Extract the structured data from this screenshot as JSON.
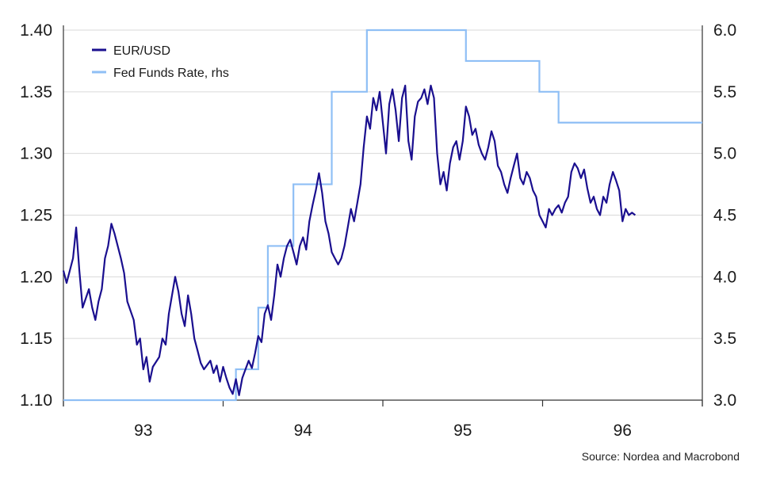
{
  "source": "Source: Nordea and Macrobond",
  "colors": {
    "eurusd": "#1a0f8f",
    "fed": "#8fbff5",
    "grid": "#d9d9d9",
    "axis": "#333333"
  },
  "chart_data": {
    "type": "line",
    "legend_position": "top-left",
    "grid": true,
    "x_range": [
      2022.5,
      2024.5
    ],
    "x_ticks": [
      {
        "label": "93",
        "x": 2022.75
      },
      {
        "label": "94",
        "x": 2023.25
      },
      {
        "label": "95",
        "x": 2023.75
      },
      {
        "label": "96",
        "x": 2024.25
      }
    ],
    "x_boundaries": [
      2022.5,
      2023.0,
      2023.5,
      2024.0,
      2024.5
    ],
    "y_left": {
      "range": [
        1.1,
        1.4
      ],
      "ticks": [
        "1.10",
        "1.15",
        "1.20",
        "1.25",
        "1.30",
        "1.35",
        "1.40"
      ]
    },
    "y_right": {
      "range": [
        3.0,
        6.0
      ],
      "ticks": [
        "3.0",
        "3.5",
        "4.0",
        "4.5",
        "5.0",
        "5.5",
        "6.0"
      ]
    },
    "series": [
      {
        "name": "EUR/USD",
        "axis": "left",
        "points": [
          [
            2022.5,
            1.205
          ],
          [
            2022.51,
            1.195
          ],
          [
            2022.53,
            1.215
          ],
          [
            2022.54,
            1.24
          ],
          [
            2022.55,
            1.205
          ],
          [
            2022.56,
            1.175
          ],
          [
            2022.58,
            1.19
          ],
          [
            2022.59,
            1.175
          ],
          [
            2022.6,
            1.165
          ],
          [
            2022.61,
            1.18
          ],
          [
            2022.62,
            1.19
          ],
          [
            2022.63,
            1.215
          ],
          [
            2022.64,
            1.225
          ],
          [
            2022.65,
            1.243
          ],
          [
            2022.66,
            1.235
          ],
          [
            2022.68,
            1.215
          ],
          [
            2022.69,
            1.203
          ],
          [
            2022.7,
            1.18
          ],
          [
            2022.72,
            1.165
          ],
          [
            2022.73,
            1.145
          ],
          [
            2022.74,
            1.15
          ],
          [
            2022.75,
            1.125
          ],
          [
            2022.76,
            1.135
          ],
          [
            2022.77,
            1.115
          ],
          [
            2022.78,
            1.127
          ],
          [
            2022.8,
            1.135
          ],
          [
            2022.81,
            1.15
          ],
          [
            2022.82,
            1.145
          ],
          [
            2022.83,
            1.17
          ],
          [
            2022.84,
            1.185
          ],
          [
            2022.85,
            1.2
          ],
          [
            2022.86,
            1.188
          ],
          [
            2022.87,
            1.17
          ],
          [
            2022.88,
            1.16
          ],
          [
            2022.89,
            1.185
          ],
          [
            2022.9,
            1.17
          ],
          [
            2022.91,
            1.15
          ],
          [
            2022.92,
            1.14
          ],
          [
            2022.93,
            1.13
          ],
          [
            2022.94,
            1.125
          ],
          [
            2022.96,
            1.132
          ],
          [
            2022.97,
            1.122
          ],
          [
            2022.98,
            1.128
          ],
          [
            2022.99,
            1.115
          ],
          [
            2023.0,
            1.127
          ],
          [
            2023.01,
            1.118
          ],
          [
            2023.02,
            1.11
          ],
          [
            2023.03,
            1.105
          ],
          [
            2023.04,
            1.117
          ],
          [
            2023.05,
            1.104
          ],
          [
            2023.06,
            1.118
          ],
          [
            2023.07,
            1.125
          ],
          [
            2023.08,
            1.132
          ],
          [
            2023.09,
            1.126
          ],
          [
            2023.1,
            1.138
          ],
          [
            2023.11,
            1.152
          ],
          [
            2023.12,
            1.147
          ],
          [
            2023.13,
            1.17
          ],
          [
            2023.14,
            1.177
          ],
          [
            2023.15,
            1.165
          ],
          [
            2023.16,
            1.185
          ],
          [
            2023.17,
            1.21
          ],
          [
            2023.18,
            1.2
          ],
          [
            2023.19,
            1.215
          ],
          [
            2023.2,
            1.225
          ],
          [
            2023.21,
            1.23
          ],
          [
            2023.22,
            1.22
          ],
          [
            2023.23,
            1.21
          ],
          [
            2023.24,
            1.225
          ],
          [
            2023.25,
            1.232
          ],
          [
            2023.26,
            1.222
          ],
          [
            2023.27,
            1.245
          ],
          [
            2023.28,
            1.258
          ],
          [
            2023.29,
            1.27
          ],
          [
            2023.3,
            1.284
          ],
          [
            2023.31,
            1.268
          ],
          [
            2023.32,
            1.245
          ],
          [
            2023.33,
            1.235
          ],
          [
            2023.34,
            1.22
          ],
          [
            2023.35,
            1.215
          ],
          [
            2023.36,
            1.21
          ],
          [
            2023.37,
            1.215
          ],
          [
            2023.38,
            1.225
          ],
          [
            2023.39,
            1.24
          ],
          [
            2023.4,
            1.255
          ],
          [
            2023.41,
            1.245
          ],
          [
            2023.42,
            1.26
          ],
          [
            2023.43,
            1.275
          ],
          [
            2023.44,
            1.305
          ],
          [
            2023.45,
            1.33
          ],
          [
            2023.46,
            1.32
          ],
          [
            2023.47,
            1.345
          ],
          [
            2023.48,
            1.335
          ],
          [
            2023.49,
            1.35
          ],
          [
            2023.5,
            1.325
          ],
          [
            2023.51,
            1.3
          ],
          [
            2023.52,
            1.34
          ],
          [
            2023.53,
            1.352
          ],
          [
            2023.54,
            1.335
          ],
          [
            2023.55,
            1.31
          ],
          [
            2023.56,
            1.345
          ],
          [
            2023.57,
            1.355
          ],
          [
            2023.58,
            1.31
          ],
          [
            2023.59,
            1.295
          ],
          [
            2023.6,
            1.33
          ],
          [
            2023.61,
            1.342
          ],
          [
            2023.62,
            1.345
          ],
          [
            2023.63,
            1.352
          ],
          [
            2023.64,
            1.34
          ],
          [
            2023.65,
            1.355
          ],
          [
            2023.66,
            1.345
          ],
          [
            2023.67,
            1.3
          ],
          [
            2023.68,
            1.275
          ],
          [
            2023.69,
            1.285
          ],
          [
            2023.7,
            1.27
          ],
          [
            2023.71,
            1.292
          ],
          [
            2023.72,
            1.305
          ],
          [
            2023.73,
            1.31
          ],
          [
            2023.74,
            1.295
          ],
          [
            2023.75,
            1.31
          ],
          [
            2023.76,
            1.338
          ],
          [
            2023.77,
            1.33
          ],
          [
            2023.78,
            1.315
          ],
          [
            2023.79,
            1.32
          ],
          [
            2023.8,
            1.307
          ],
          [
            2023.81,
            1.3
          ],
          [
            2023.82,
            1.295
          ],
          [
            2023.83,
            1.305
          ],
          [
            2023.84,
            1.318
          ],
          [
            2023.85,
            1.31
          ],
          [
            2023.86,
            1.29
          ],
          [
            2023.87,
            1.285
          ],
          [
            2023.88,
            1.275
          ],
          [
            2023.89,
            1.268
          ],
          [
            2023.9,
            1.28
          ],
          [
            2023.91,
            1.29
          ],
          [
            2023.92,
            1.3
          ],
          [
            2023.93,
            1.28
          ],
          [
            2023.94,
            1.275
          ],
          [
            2023.95,
            1.285
          ],
          [
            2023.96,
            1.28
          ],
          [
            2023.97,
            1.27
          ],
          [
            2023.98,
            1.265
          ],
          [
            2023.99,
            1.25
          ],
          [
            2024.0,
            1.245
          ],
          [
            2024.01,
            1.24
          ],
          [
            2024.02,
            1.255
          ],
          [
            2024.03,
            1.25
          ],
          [
            2024.04,
            1.255
          ],
          [
            2024.05,
            1.258
          ],
          [
            2024.06,
            1.252
          ],
          [
            2024.07,
            1.26
          ],
          [
            2024.08,
            1.265
          ],
          [
            2024.09,
            1.285
          ],
          [
            2024.1,
            1.292
          ],
          [
            2024.11,
            1.288
          ],
          [
            2024.12,
            1.28
          ],
          [
            2024.13,
            1.287
          ],
          [
            2024.14,
            1.272
          ],
          [
            2024.15,
            1.26
          ],
          [
            2024.16,
            1.265
          ],
          [
            2024.17,
            1.255
          ],
          [
            2024.18,
            1.25
          ],
          [
            2024.19,
            1.265
          ],
          [
            2024.2,
            1.26
          ],
          [
            2024.21,
            1.275
          ],
          [
            2024.22,
            1.285
          ],
          [
            2024.23,
            1.278
          ],
          [
            2024.24,
            1.27
          ],
          [
            2024.25,
            1.245
          ],
          [
            2024.26,
            1.255
          ],
          [
            2024.27,
            1.25
          ],
          [
            2024.28,
            1.252
          ],
          [
            2024.29,
            1.25
          ]
        ]
      },
      {
        "name": "Fed Funds Rate, rhs",
        "axis": "right",
        "steps": [
          [
            2022.5,
            3.0
          ],
          [
            2023.04,
            3.25
          ],
          [
            2023.11,
            3.75
          ],
          [
            2023.14,
            4.25
          ],
          [
            2023.22,
            4.75
          ],
          [
            2023.34,
            5.5
          ],
          [
            2023.45,
            6.0
          ],
          [
            2023.76,
            5.75
          ],
          [
            2023.99,
            5.5
          ],
          [
            2024.05,
            5.25
          ],
          [
            2024.5,
            5.25
          ]
        ]
      }
    ]
  }
}
